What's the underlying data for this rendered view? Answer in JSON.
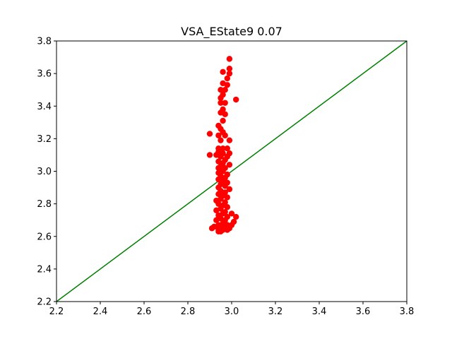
{
  "chart_data": {
    "type": "scatter",
    "title": "VSA_EState9 0.07",
    "xlabel": "",
    "ylabel": "",
    "xlim": [
      2.2,
      3.8
    ],
    "ylim": [
      2.2,
      3.8
    ],
    "x_ticks": [
      "2.2",
      "2.4",
      "2.6",
      "2.8",
      "3.0",
      "3.2",
      "3.4",
      "3.6",
      "3.8"
    ],
    "y_ticks": [
      "2.2",
      "2.4",
      "2.6",
      "2.8",
      "3.0",
      "3.2",
      "3.4",
      "3.6",
      "3.8"
    ],
    "grid": false,
    "reference_line": {
      "x": [
        2.2,
        3.8
      ],
      "y": [
        2.2,
        3.8
      ],
      "color": "#008000"
    },
    "series": [
      {
        "color": "#ff0000",
        "points": [
          [
            2.99,
            3.69
          ],
          [
            2.99,
            3.63
          ],
          [
            2.96,
            3.61
          ],
          [
            2.99,
            3.6
          ],
          [
            2.98,
            3.57
          ],
          [
            2.96,
            3.54
          ],
          [
            2.98,
            3.53
          ],
          [
            2.95,
            3.5
          ],
          [
            2.97,
            3.5
          ],
          [
            2.96,
            3.47
          ],
          [
            2.95,
            3.45
          ],
          [
            3.02,
            3.44
          ],
          [
            2.95,
            3.42
          ],
          [
            2.97,
            3.42
          ],
          [
            2.96,
            3.38
          ],
          [
            2.95,
            3.36
          ],
          [
            2.97,
            3.35
          ],
          [
            2.96,
            3.31
          ],
          [
            2.94,
            3.28
          ],
          [
            2.95,
            3.26
          ],
          [
            2.96,
            3.24
          ],
          [
            2.9,
            3.23
          ],
          [
            2.94,
            3.22
          ],
          [
            2.97,
            3.22
          ],
          [
            2.95,
            3.19
          ],
          [
            2.99,
            3.19
          ],
          [
            2.94,
            3.14
          ],
          [
            2.96,
            3.14
          ],
          [
            2.98,
            3.14
          ],
          [
            2.94,
            3.12
          ],
          [
            2.96,
            3.11
          ],
          [
            2.99,
            3.11
          ],
          [
            2.93,
            3.1
          ],
          [
            2.9,
            3.1
          ],
          [
            2.95,
            3.09
          ],
          [
            2.98,
            3.09
          ],
          [
            2.97,
            3.07
          ],
          [
            2.94,
            3.06
          ],
          [
            2.96,
            3.05
          ],
          [
            2.99,
            3.04
          ],
          [
            2.95,
            3.03
          ],
          [
            2.94,
            3.02
          ],
          [
            2.97,
            3.02
          ],
          [
            2.96,
            3.0
          ],
          [
            2.94,
            2.99
          ],
          [
            2.98,
            2.98
          ],
          [
            2.95,
            2.97
          ],
          [
            2.97,
            2.96
          ],
          [
            2.94,
            2.95
          ],
          [
            2.96,
            2.94
          ],
          [
            2.98,
            2.93
          ],
          [
            2.95,
            2.92
          ],
          [
            2.97,
            2.91
          ],
          [
            2.94,
            2.9
          ],
          [
            2.99,
            2.89
          ],
          [
            2.95,
            2.88
          ],
          [
            2.97,
            2.87
          ],
          [
            2.94,
            2.86
          ],
          [
            2.96,
            2.85
          ],
          [
            2.98,
            2.84
          ],
          [
            2.95,
            2.83
          ],
          [
            2.93,
            2.82
          ],
          [
            2.97,
            2.81
          ],
          [
            2.94,
            2.8
          ],
          [
            2.96,
            2.79
          ],
          [
            2.98,
            2.78
          ],
          [
            2.95,
            2.77
          ],
          [
            2.93,
            2.76
          ],
          [
            2.97,
            2.75
          ],
          [
            2.96,
            2.74
          ],
          [
            3.0,
            2.74
          ],
          [
            2.94,
            2.73
          ],
          [
            2.98,
            2.72
          ],
          [
            3.02,
            2.72
          ],
          [
            2.95,
            2.71
          ],
          [
            2.93,
            2.7
          ],
          [
            2.97,
            2.7
          ],
          [
            3.01,
            2.69
          ],
          [
            2.96,
            2.68
          ],
          [
            2.94,
            2.67
          ],
          [
            2.98,
            2.67
          ],
          [
            3.0,
            2.67
          ],
          [
            2.92,
            2.66
          ],
          [
            2.95,
            2.66
          ],
          [
            2.97,
            2.65
          ],
          [
            2.99,
            2.65
          ],
          [
            2.91,
            2.65
          ],
          [
            2.94,
            2.64
          ],
          [
            2.96,
            2.64
          ],
          [
            2.98,
            2.64
          ],
          [
            2.95,
            2.63
          ],
          [
            2.94,
            2.63
          ]
        ]
      }
    ]
  }
}
